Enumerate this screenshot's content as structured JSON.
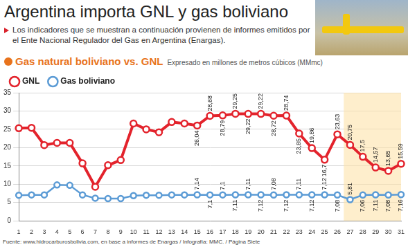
{
  "chart_data": {
    "type": "line",
    "title": "Argentina importa GNL y gas boliviano",
    "subtitle": "Los indicadores que se muestran a continuación provienen de informes emitidos por el Ente Nacional Regulador del Gas en Argentina (Enargas).",
    "section_title": "Gas natural boliviano vs. GNL",
    "y_label": "Expresado en millones de metros cúbicos (MMmc)",
    "source": "Fuente: www.hidrocarburosbolivia.com, en base a informes de Enargas / Infografía: MMC. / Página Siete",
    "categories": [
      "1",
      "2",
      "3",
      "4",
      "5",
      "6",
      "7",
      "8",
      "9",
      "10",
      "11",
      "12",
      "13",
      "14",
      "15",
      "16",
      "17",
      "18",
      "19",
      "20",
      "21",
      "22",
      "23",
      "24",
      "25",
      "26",
      "27",
      "28",
      "29",
      "30",
      "31"
    ],
    "series": [
      {
        "name": "GNL",
        "color": "#e3232c",
        "marker": "circle",
        "values": [
          25.3,
          25.4,
          20.7,
          21.3,
          21.3,
          15.7,
          9.3,
          15.2,
          16.6,
          26.6,
          25.0,
          24.2,
          27.0,
          26.6,
          26.04,
          28.68,
          28.79,
          29.25,
          29.22,
          29.22,
          28.72,
          28.74,
          23.85,
          19.86,
          16.7,
          23.63,
          20.75,
          17.5,
          14.57,
          13.65,
          15.59
        ],
        "value_labels": [
          null,
          null,
          null,
          null,
          null,
          null,
          null,
          null,
          null,
          null,
          null,
          null,
          null,
          null,
          "26,04",
          "28,68",
          "28,79",
          "29,25",
          "29,22",
          "29,22",
          "28,72",
          "28,74",
          "23,85",
          "19,86",
          "16,7",
          "23,63",
          "20,75",
          "17,5",
          "14,57",
          "13,65",
          "15,59"
        ]
      },
      {
        "name": "Gas boliviano",
        "color": "#5b9bd5",
        "marker": "circle",
        "values": [
          7.0,
          7.1,
          7.1,
          9.8,
          9.7,
          7.1,
          6.2,
          6.1,
          6.1,
          6.9,
          7.0,
          7.0,
          7.1,
          7.1,
          7.14,
          7.1,
          7.1,
          7.11,
          7.11,
          7.12,
          7.08,
          7.12,
          7.11,
          7.12,
          7.12,
          7.08,
          5.81,
          7.06,
          7.11,
          7.08,
          7.16
        ],
        "value_labels": [
          null,
          null,
          null,
          null,
          null,
          null,
          null,
          null,
          null,
          null,
          null,
          null,
          null,
          null,
          "7,14",
          "7,1",
          "7,1",
          "7,11",
          "7,11",
          "7,12",
          "7,08",
          "7,12",
          "7,11",
          "7,12",
          "7,12",
          "7,08",
          "5,81",
          "7,06",
          "7,11",
          "7,08",
          "7,16"
        ]
      }
    ],
    "ylim": [
      0,
      35
    ],
    "yticks": [
      0,
      5,
      10,
      15,
      20,
      25,
      30,
      35
    ],
    "grid": true,
    "legend": "upper left",
    "data_labels": true
  }
}
